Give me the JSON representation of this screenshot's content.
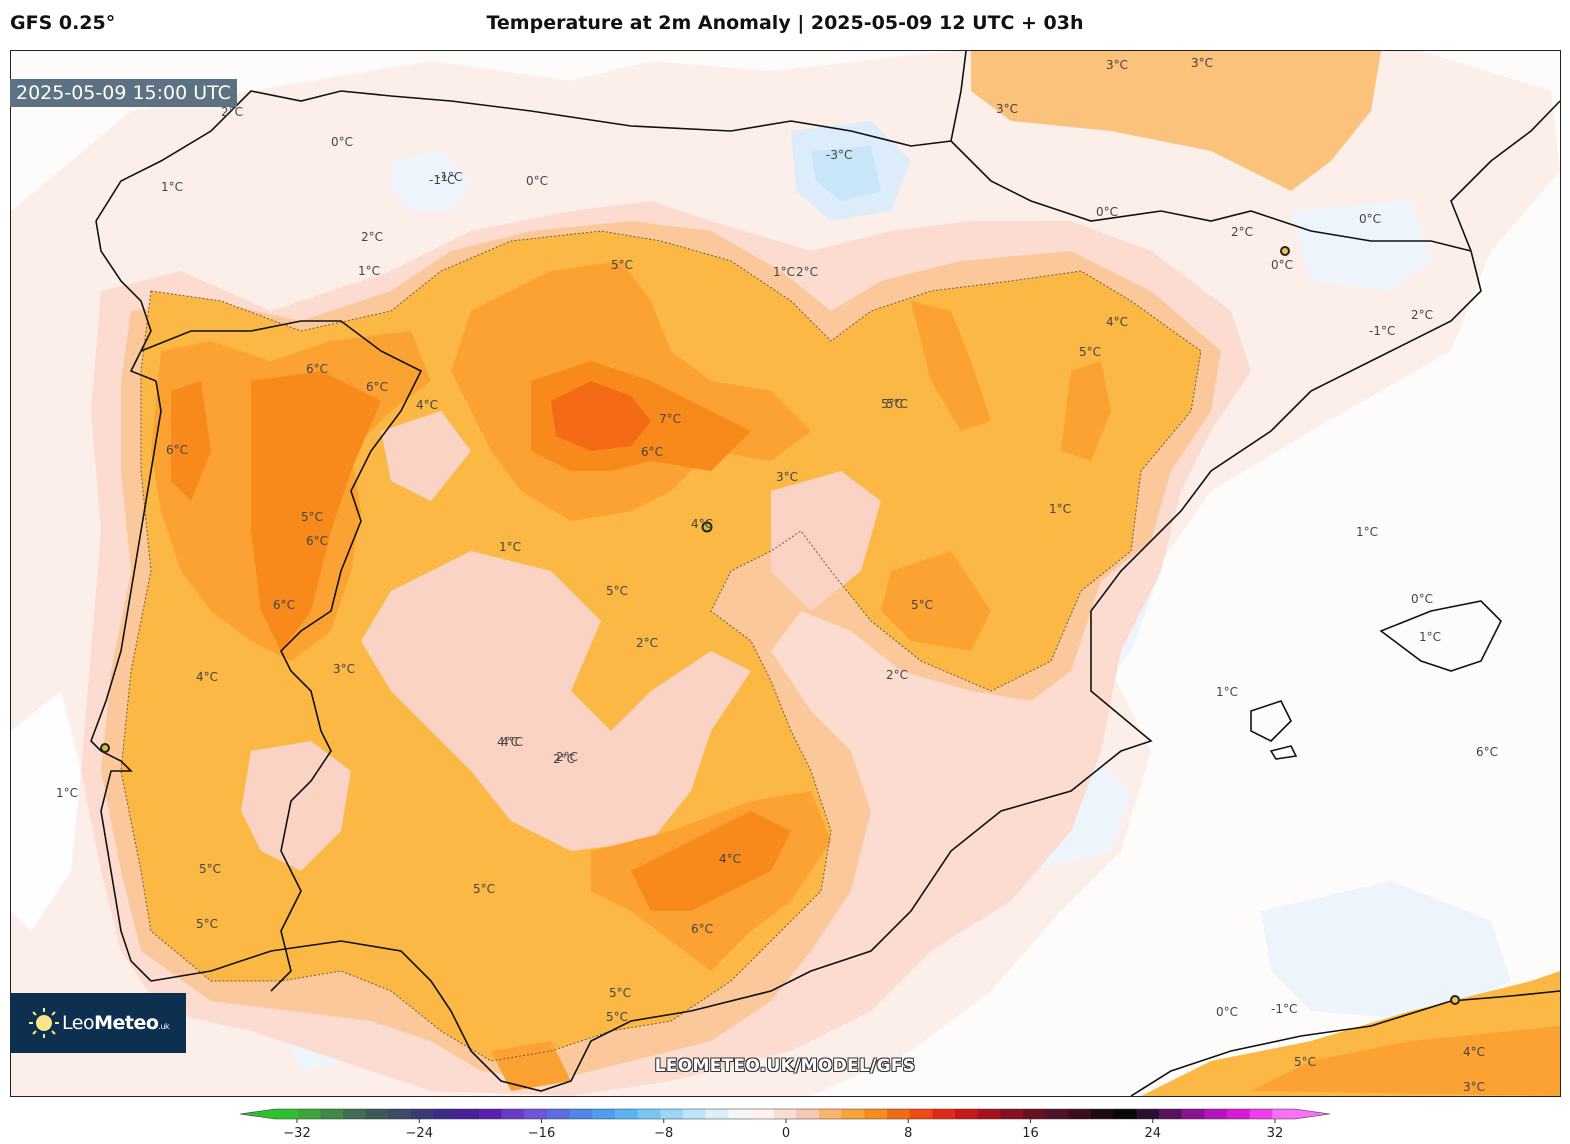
{
  "header": {
    "model": "GFS 0.25°",
    "title": "Temperature at 2m Anomaly | 2025-05-09 12 UTC + 03h"
  },
  "map": {
    "valid_time": "2025-05-09 15:00 UTC",
    "watermark": "LEOMETEO.UK/MODEL/GFS",
    "contour_labels": {
      "l1": "1°C",
      "l2": "2°C",
      "l3": "0°C",
      "l4": "-1°C",
      "l5": "-3°C",
      "l6": "2°C",
      "l7": "3°C",
      "l8": "3°C",
      "l9": "3°C",
      "l10": "6°C",
      "l11": "6°C",
      "l12": "4°C",
      "l13": "6°C",
      "l14": "5°C",
      "l15": "5°C",
      "l16": "7°C",
      "l17": "6°C",
      "l18": "4°C",
      "l19": "5°C",
      "l20": "5°C",
      "l21": "4°C",
      "l22": "5°C",
      "l23": "2°C",
      "l24": "1°C",
      "l25": "5°C",
      "l26": "6°C",
      "l27": "5°C",
      "l28": "4°C",
      "l29": "4°C",
      "l30": "2°C",
      "l31": "3°C",
      "l32": "5°C",
      "l33": "5°C",
      "l34": "2°C",
      "l35": "0°C",
      "l36": "-1°C",
      "l37": "1°C",
      "l38": "0°C",
      "l39": "2°C",
      "l40": "1°C",
      "l41": "1°C",
      "l42": "0°C",
      "l43": "-1°C",
      "l44": "1°C",
      "l45": "0°C",
      "l46": "2°C",
      "l47": "6°C",
      "l48": "6°C",
      "l49": "4°C",
      "l50": "5°C",
      "l51": "6°C",
      "l52": "3°C",
      "l53": "5°C",
      "l54": "4°C",
      "l55": "5°C",
      "l56": "2°C",
      "l57": "0°C",
      "l58": "-1°C",
      "l59": "2°C",
      "l60": "5°C",
      "l61": "4°C",
      "l62": "3°C",
      "l63": "1°C",
      "l64": "1°C",
      "l65": "0°C",
      "l66": "1°C"
    }
  },
  "logo": {
    "brand_light": "Leo",
    "brand_bold": "Meteo",
    "brand_suffix": ".uk"
  },
  "colorbar": {
    "ticks": [
      "−32",
      "−24",
      "−16",
      "−8",
      "0",
      "8",
      "16",
      "24",
      "32"
    ],
    "colors": [
      "#2ec02e",
      "#3aa63a",
      "#3e8a45",
      "#3f6e52",
      "#3d5a5a",
      "#3d4a66",
      "#3b3a78",
      "#3f2a88",
      "#4b1e9a",
      "#5a1fae",
      "#6a3cc4",
      "#6f55d6",
      "#5b6ee0",
      "#4d86e8",
      "#4d9ef0",
      "#5ab4f4",
      "#75c7f6",
      "#98d7f7",
      "#bde5f8",
      "#ddf0fa",
      "#f3f8fb",
      "#fdf2ee",
      "#fbdcd2",
      "#f7c8b4",
      "#f9b36a",
      "#f9a33a",
      "#f68c1e",
      "#f36a14",
      "#ee4a12",
      "#e12a16",
      "#c8181a",
      "#a8121c",
      "#861020",
      "#6a0e22",
      "#501226",
      "#3a0e1e",
      "#200a12",
      "#0b0608",
      "#2a0f30",
      "#581260",
      "#8a1390",
      "#b714c0",
      "#d81ad8",
      "#ee3cee",
      "#f870f8"
    ]
  }
}
